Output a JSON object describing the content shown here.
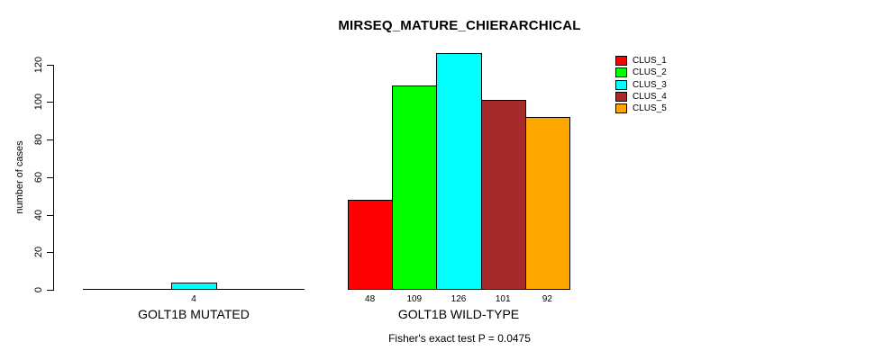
{
  "title": "MIRSEQ_MATURE_CHIERARCHICAL",
  "ylabel": "number of cases",
  "footer": "Fisher's exact test P = 0.0475",
  "chart_data": {
    "type": "bar",
    "title": "MIRSEQ_MATURE_CHIERARCHICAL",
    "xlabel": "",
    "ylabel": "number of cases",
    "categories": [
      "GOLT1B MUTATED",
      "GOLT1B WILD-TYPE"
    ],
    "series": [
      {
        "name": "CLUS_1",
        "color": "#FF0000",
        "values": [
          0,
          48
        ]
      },
      {
        "name": "CLUS_2",
        "color": "#00FF00",
        "values": [
          0,
          109
        ]
      },
      {
        "name": "CLUS_3",
        "color": "#00FFFF",
        "values": [
          4,
          126
        ]
      },
      {
        "name": "CLUS_4",
        "color": "#A52A2A",
        "values": [
          0,
          101
        ]
      },
      {
        "name": "CLUS_5",
        "color": "#FFA500",
        "values": [
          0,
          92
        ]
      }
    ],
    "yticks": [
      0,
      20,
      40,
      60,
      80,
      100,
      120
    ],
    "ylim": [
      0,
      126
    ],
    "grid": false,
    "legend_position": "top-right",
    "bar_value_labels_shown_for_nonzero_only": true,
    "annotation": "Fisher's exact test P = 0.0475"
  }
}
